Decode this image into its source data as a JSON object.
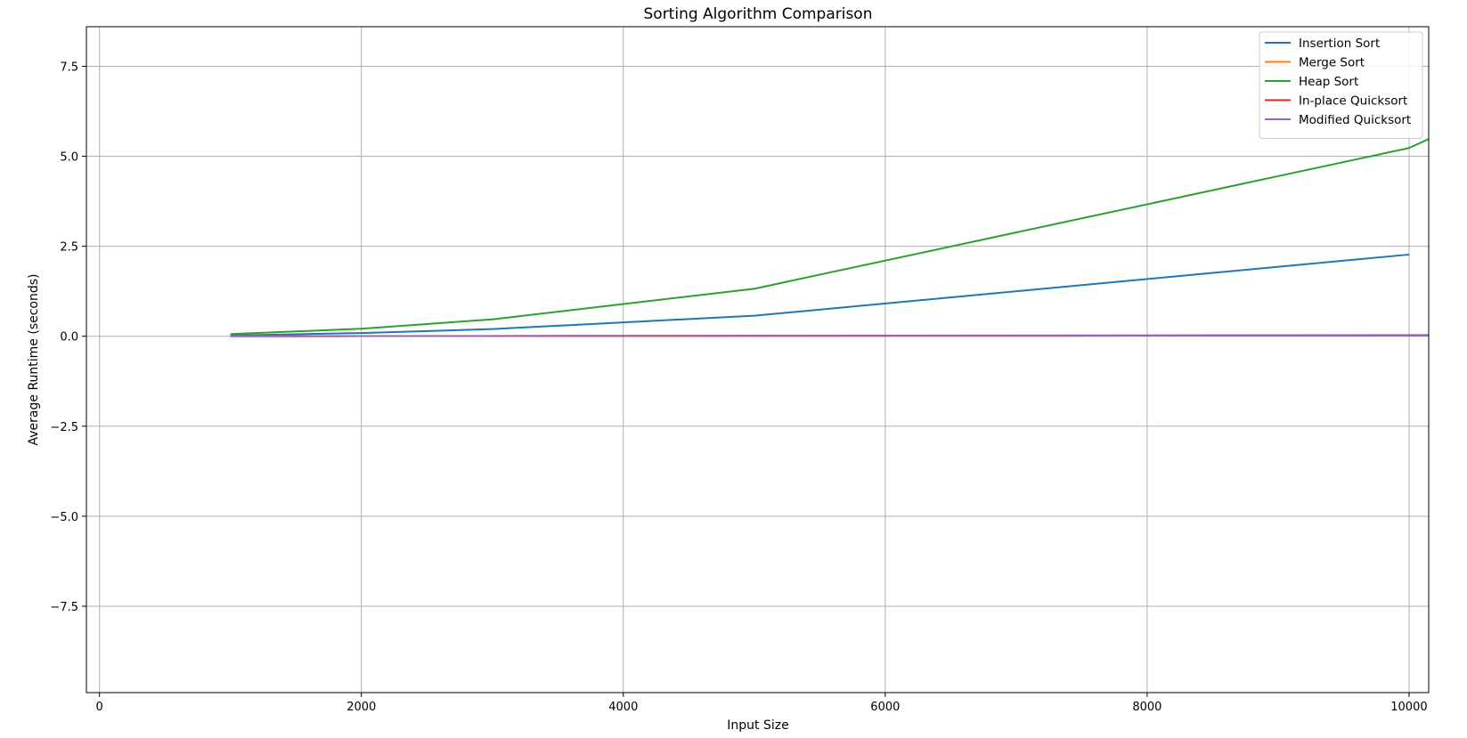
{
  "chart_data": {
    "type": "line",
    "title": "Sorting Algorithm Comparison",
    "xlabel": "Input Size",
    "ylabel": "Average Runtime (seconds)",
    "xlim": [
      -100,
      10150
    ],
    "ylim": [
      -9.9,
      8.6
    ],
    "x_ticks": [
      0,
      2000,
      4000,
      6000,
      8000,
      10000
    ],
    "x_tick_labels": [
      "0",
      "2000",
      "4000",
      "6000",
      "8000",
      "10000"
    ],
    "y_ticks": [
      -7.5,
      -5.0,
      -2.5,
      0.0,
      2.5,
      5.0,
      7.5
    ],
    "y_tick_labels": [
      "−7.5",
      "−5.0",
      "−2.5",
      "0.0",
      "2.5",
      "5.0",
      "7.5"
    ],
    "grid": true,
    "legend_position": "top-right",
    "x": [
      1000,
      2000,
      3000,
      5000,
      10000,
      10150
    ],
    "series": [
      {
        "name": "Insertion Sort",
        "color": "#1f77b4",
        "x": [
          1000,
          2000,
          3000,
          5000,
          10000
        ],
        "values": [
          0.02,
          0.09,
          0.2,
          0.57,
          2.27
        ]
      },
      {
        "name": "Merge Sort",
        "color": "#ff7f0e",
        "x": [
          1000,
          2000,
          3000,
          5000,
          10000,
          10150
        ],
        "values": [
          0.003,
          0.006,
          0.009,
          0.016,
          0.034,
          0.035
        ]
      },
      {
        "name": "Heap Sort",
        "color": "#2ca02c",
        "x": [
          1000,
          2000,
          3000,
          5000,
          10000,
          10150
        ],
        "values": [
          0.06,
          0.21,
          0.47,
          1.32,
          5.23,
          5.48
        ]
      },
      {
        "name": "In-place Quicksort",
        "color": "#d62728",
        "x": [
          1000,
          2000,
          3000,
          5000,
          10000,
          10150
        ],
        "values": [
          0.002,
          0.004,
          0.006,
          0.011,
          0.023,
          0.024
        ]
      },
      {
        "name": "Modified Quicksort",
        "color": "#9467bd",
        "x": [
          1000,
          2000,
          3000,
          5000,
          10000,
          10150
        ],
        "values": [
          0.002,
          0.004,
          0.006,
          0.011,
          0.023,
          0.024
        ]
      }
    ]
  }
}
